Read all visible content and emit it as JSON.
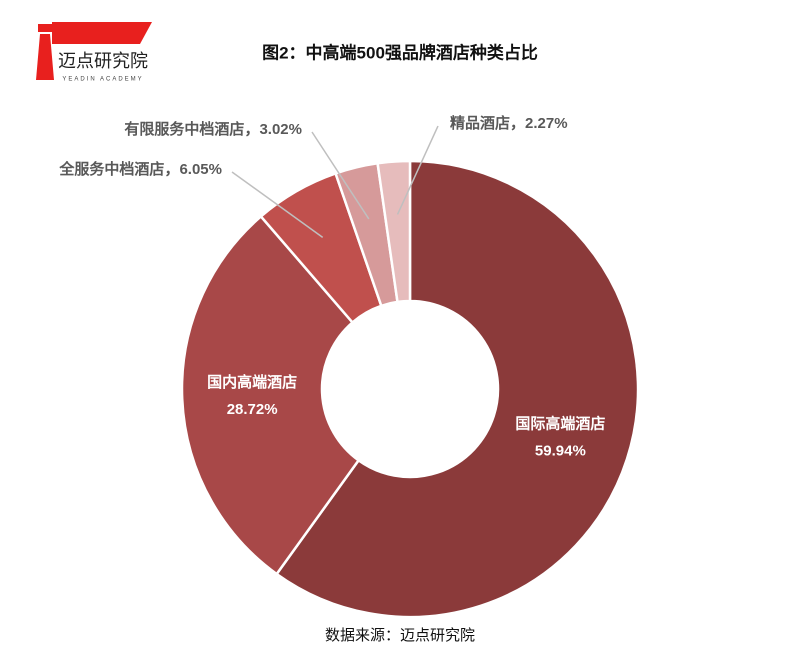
{
  "chart_data": {
    "type": "donut",
    "title": "图2：中高端500强品牌酒店种类占比",
    "categories": [
      "国际高端酒店",
      "国内高端酒店",
      "全服务中档酒店",
      "有限服务中档酒店",
      "精品酒店"
    ],
    "values": [
      59.94,
      28.72,
      6.05,
      3.02,
      2.27
    ],
    "value_labels": [
      "59.94%",
      "28.72%",
      "6.05%",
      "3.02%",
      "2.27%"
    ],
    "colors": [
      "#8b3a3a",
      "#a84848",
      "#c0504d",
      "#d69a9a",
      "#e6bcbc"
    ],
    "label_separator": "，",
    "source": "数据来源：迈点研究院"
  },
  "logo": {
    "name": "迈点研究院",
    "subtitle": "YEADIN ACADEMY"
  }
}
